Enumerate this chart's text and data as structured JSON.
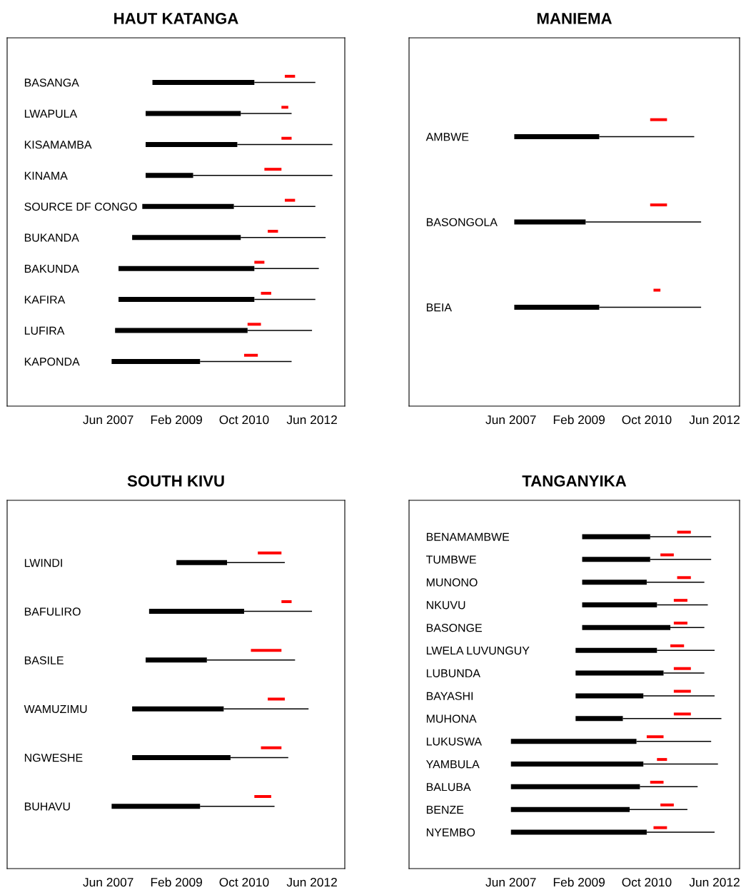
{
  "chart_data": [
    {
      "type": "bar",
      "orientation": "horizontal",
      "title": "HAUT KATANGA",
      "categories": [
        "BASANGA",
        "LWAPULA",
        "KISAMAMBA",
        "KINAMA",
        "SOURCE DF CONGO",
        "BUKANDA",
        "BAKUNDA",
        "KAFIRA",
        "LUFIRA",
        "KAPONDA"
      ],
      "series": [
        {
          "color": "#000000",
          "base": [
            14061,
            14000,
            14000,
            14000,
            13970,
            13879,
            13757,
            13757,
            13726,
            13695
          ],
          "values": [
            914,
            853,
            822,
            426,
            821,
            974,
            1218,
            1218,
            1188,
            793
          ]
        },
        {
          "color": "#000000",
          "base": [
            14975,
            14853,
            14822,
            14426,
            14791,
            14853,
            14975,
            14975,
            14914,
            14488
          ],
          "values": [
            547,
            456,
            853,
            1249,
            731,
            761,
            578,
            547,
            578,
            821
          ]
        },
        {
          "color": "#ff0000",
          "base": [
            15248,
            15218,
            15218,
            15065,
            15248,
            15095,
            14975,
            15034,
            14914,
            14883
          ],
          "values": [
            92,
            61,
            91,
            153,
            92,
            92,
            90,
            92,
            120,
            123
          ]
        }
      ],
      "xlim": [
        "2004-12-06",
        "2013-03-22"
      ],
      "xticks": [
        {
          "value": "2007-06-01",
          "label": "Jun 2007"
        },
        {
          "value": "2009-02-01",
          "label": "Feb 2009"
        },
        {
          "value": "2010-10-01",
          "label": "Oct 2010"
        },
        {
          "value": "2012-06-01",
          "label": "Jun 2012"
        }
      ]
    },
    {
      "type": "bar",
      "orientation": "horizontal",
      "title": "MANIEMA",
      "categories": [
        "AMBWE",
        "BASONGOLA",
        "BEIA"
      ],
      "series": [
        {
          "color": "#000000",
          "base": [
            13695,
            13695,
            13695
          ],
          "values": [
            762,
            640,
            762
          ]
        },
        {
          "color": "#000000",
          "base": [
            14457,
            14335,
            14457
          ],
          "values": [
            852,
            1036,
            914
          ]
        },
        {
          "color": "#ff0000",
          "base": [
            14914,
            14914,
            14944
          ],
          "values": [
            151,
            151,
            62
          ]
        }
      ],
      "xlim": [
        "2004-11-29",
        "2013-01-11"
      ],
      "xticks": [
        {
          "value": "2007-06-01",
          "label": "Jun 2007"
        },
        {
          "value": "2009-02-01",
          "label": "Feb 2009"
        },
        {
          "value": "2010-10-01",
          "label": "Oct 2010"
        },
        {
          "value": "2012-06-01",
          "label": "Jun 2012"
        }
      ]
    },
    {
      "type": "bar",
      "orientation": "horizontal",
      "title": "SOUTH KIVU",
      "categories": [
        "LWINDI",
        "BAFULIRO",
        "BASILE",
        "WAMUZIMU",
        "NGWESHE",
        "BUHAVU"
      ],
      "series": [
        {
          "color": "#000000",
          "base": [
            14276,
            14031,
            14000,
            13879,
            13879,
            13695
          ],
          "values": [
            454,
            852,
            549,
            821,
            882,
            793
          ]
        },
        {
          "color": "#000000",
          "base": [
            14730,
            14883,
            14549,
            14700,
            14761,
            14488
          ],
          "values": [
            518,
            609,
            791,
            761,
            518,
            668
          ]
        },
        {
          "color": "#ff0000",
          "base": [
            15006,
            15218,
            14944,
            15095,
            15034,
            14975
          ],
          "values": [
            212,
            91,
            274,
            153,
            184,
            151
          ]
        }
      ],
      "xlim": [
        "2004-12-06",
        "2013-03-22"
      ],
      "xticks": [
        {
          "value": "2007-06-01",
          "label": "Jun 2007"
        },
        {
          "value": "2009-02-01",
          "label": "Feb 2009"
        },
        {
          "value": "2010-10-01",
          "label": "Oct 2010"
        },
        {
          "value": "2012-06-01",
          "label": "Jun 2012"
        }
      ]
    },
    {
      "type": "bar",
      "orientation": "horizontal",
      "title": "TANGANYIKA",
      "categories": [
        "BENAMAMBWE",
        "TUMBWE",
        "MUNONO",
        "NKUVU",
        "BASONGE",
        "LWELA LUVUNGUY",
        "LUBUNDA",
        "BAYASHI",
        "MUHONA",
        "LUKUSWA",
        "YAMBULA",
        "BALUBA",
        "BENZE",
        "NYEMBO"
      ],
      "series": [
        {
          "color": "#000000",
          "base": [
            14304,
            14304,
            14304,
            14304,
            14304,
            14245,
            14245,
            14245,
            14245,
            13665,
            13665,
            13665,
            13665,
            13665
          ],
          "values": [
            610,
            610,
            579,
            671,
            791,
            730,
            789,
            608,
            424,
            1126,
            1188,
            1157,
            1065,
            1218
          ]
        },
        {
          "color": "#000000",
          "base": [
            14914,
            14914,
            14883,
            14975,
            15095,
            14975,
            15034,
            14853,
            14669,
            14791,
            14853,
            14822,
            14730,
            14883
          ],
          "values": [
            547,
            547,
            517,
            456,
            305,
            517,
            366,
            639,
            884,
            670,
            669,
            518,
            518,
            609
          ]
        },
        {
          "color": "#ff0000",
          "base": [
            15156,
            15006,
            15156,
            15126,
            15126,
            15095,
            15126,
            15126,
            15126,
            14883,
            14975,
            14914,
            15006,
            14944
          ],
          "values": [
            123,
            120,
            123,
            122,
            122,
            123,
            153,
            153,
            153,
            151,
            90,
            120,
            120,
            121
          ]
        }
      ],
      "xlim": [
        "2004-11-29",
        "2013-01-11"
      ],
      "xticks": [
        {
          "value": "2007-06-01",
          "label": "Jun 2007"
        },
        {
          "value": "2009-02-01",
          "label": "Feb 2009"
        },
        {
          "value": "2010-10-01",
          "label": "Oct 2010"
        },
        {
          "value": "2012-06-01",
          "label": "Jun 2012"
        }
      ]
    }
  ]
}
